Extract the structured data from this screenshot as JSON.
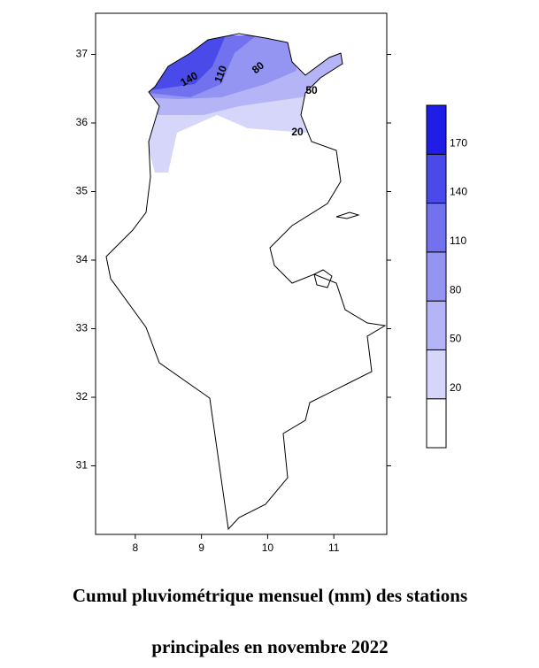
{
  "map": {
    "xlim": [
      7.4,
      11.8
    ],
    "ylim": [
      30.0,
      37.6
    ],
    "xticks": [
      8,
      9,
      10,
      11
    ],
    "yticks": [
      31,
      32,
      33,
      34,
      35,
      36,
      37
    ],
    "contour_labels": [
      140,
      110,
      80,
      50,
      20
    ],
    "colorbar": {
      "lim": [
        -10,
        200
      ],
      "ticks": [
        20,
        50,
        80,
        110,
        140,
        170
      ],
      "colors": [
        "#ffffff",
        "#d6d6fa",
        "#b4b4f6",
        "#9494f3",
        "#7272ef",
        "#4a4aea",
        "#1e1ee6"
      ]
    }
  },
  "caption": [
    "Cumul pluviométrique mensuel (mm)  des stations",
    "principales en novembre 2022"
  ]
}
